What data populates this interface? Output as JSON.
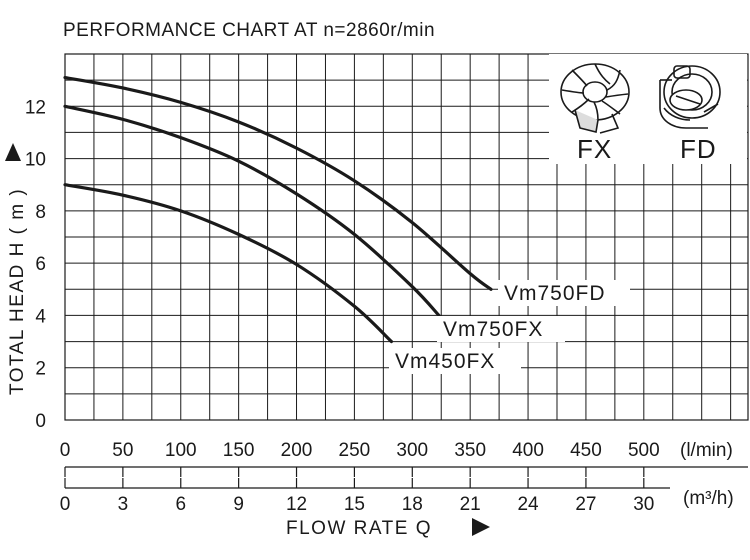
{
  "chart_data": {
    "type": "line",
    "title": "PERFORMANCE  CHART  AT  n=2860r/min",
    "ylabel": "TOTAL HEAD  H ( m )",
    "xlabel": "FLOW  RATE  Q",
    "ylim": [
      0,
      14
    ],
    "xlim": [
      0,
      590
    ],
    "yticks": [
      "0",
      "2",
      "4",
      "6",
      "8",
      "10",
      "12"
    ],
    "xticks_lmin": [
      "0",
      "50",
      "100",
      "150",
      "200",
      "250",
      "300",
      "350",
      "400",
      "450",
      "500"
    ],
    "xunit_lmin": "(l/min)",
    "xticks_m3h": [
      "0",
      "3",
      "6",
      "9",
      "12",
      "15",
      "18",
      "21",
      "24",
      "27",
      "30"
    ],
    "xunit_m3h": "(m³/h)",
    "grid": true,
    "series": [
      {
        "name": "Vm750FD",
        "x": [
          0,
          50,
          100,
          150,
          200,
          250,
          300,
          350,
          368
        ],
        "y": [
          13.1,
          12.7,
          12.15,
          11.4,
          10.4,
          9.15,
          7.55,
          5.6,
          5.0
        ]
      },
      {
        "name": "Vm750FX",
        "x": [
          0,
          50,
          100,
          150,
          200,
          250,
          300,
          323
        ],
        "y": [
          12.0,
          11.5,
          10.8,
          9.9,
          8.65,
          7.1,
          5.1,
          4.0
        ]
      },
      {
        "name": "Vm450FX",
        "x": [
          0,
          50,
          100,
          150,
          200,
          250,
          282
        ],
        "y": [
          9.0,
          8.6,
          8.0,
          7.1,
          5.95,
          4.35,
          3.0
        ]
      }
    ],
    "impellers": [
      "FX",
      "FD"
    ]
  }
}
